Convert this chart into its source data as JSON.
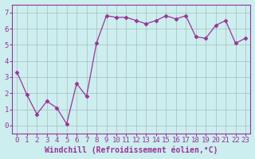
{
  "x": [
    0,
    1,
    2,
    3,
    4,
    5,
    6,
    7,
    8,
    9,
    10,
    11,
    12,
    13,
    14,
    15,
    16,
    17,
    18,
    19,
    20,
    21,
    22,
    23
  ],
  "y": [
    3.3,
    1.9,
    0.7,
    1.5,
    1.1,
    0.1,
    2.6,
    1.8,
    5.1,
    6.8,
    6.7,
    6.7,
    6.5,
    6.3,
    6.5,
    6.8,
    6.6,
    6.8,
    5.5,
    5.4,
    6.2,
    6.5,
    5.1,
    5.4
  ],
  "line_color": "#993399",
  "marker": "D",
  "marker_size": 2.5,
  "bg_color": "#cceeee",
  "grid_color": "#aabbbb",
  "label_color": "#993399",
  "xlabel": "Windchill (Refroidissement éolien,°C)",
  "ylim": [
    -0.5,
    7.5
  ],
  "xlim": [
    -0.5,
    23.5
  ],
  "xticks": [
    0,
    1,
    2,
    3,
    4,
    5,
    6,
    7,
    8,
    9,
    10,
    11,
    12,
    13,
    14,
    15,
    16,
    17,
    18,
    19,
    20,
    21,
    22,
    23
  ],
  "yticks": [
    0,
    1,
    2,
    3,
    4,
    5,
    6,
    7
  ],
  "tick_label_fontsize": 6.5,
  "xlabel_fontsize": 7
}
